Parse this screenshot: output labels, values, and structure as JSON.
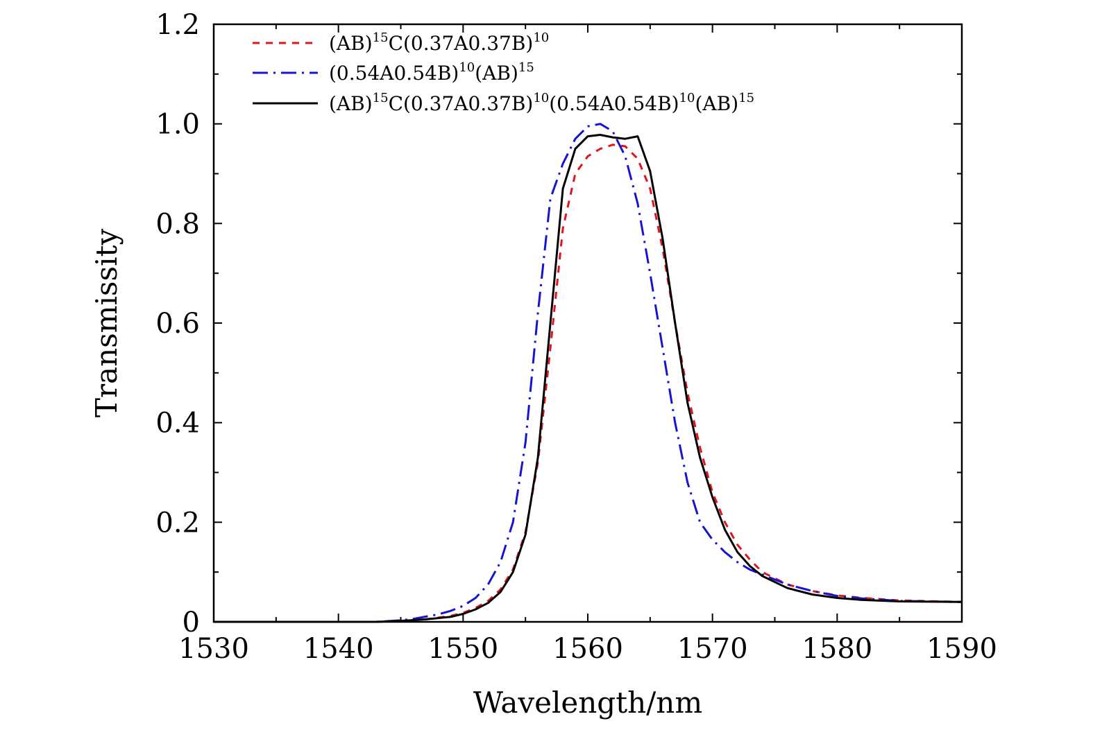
{
  "chart_data": {
    "type": "line",
    "xlabel": "Wavelength/nm",
    "ylabel": "Transmissity",
    "xlim": [
      1530,
      1590
    ],
    "ylim": [
      0,
      1.2
    ],
    "x_ticks": [
      1530,
      1540,
      1550,
      1560,
      1570,
      1580,
      1590
    ],
    "x_tick_labels": [
      "1530",
      "1540",
      "1550",
      "1560",
      "1570",
      "1580",
      "1590"
    ],
    "y_ticks": [
      0,
      0.2,
      0.4,
      0.6,
      0.8,
      1.0,
      1.2
    ],
    "y_tick_labels": [
      "0",
      "0.2",
      "0.4",
      "0.6",
      "0.8",
      "1.0",
      "1.2"
    ],
    "grid": false,
    "legend_position": "top-left",
    "series": [
      {
        "legend": [
          {
            "t": "(AB)"
          },
          {
            "sup": "15"
          },
          {
            "t": "C(0.37A0.37B)"
          },
          {
            "sup": "10"
          }
        ],
        "color": "#e0141e",
        "dash": "10 9",
        "x": [
          1530,
          1535,
          1540,
          1543,
          1545,
          1547,
          1549,
          1550,
          1551,
          1552,
          1553,
          1554,
          1555,
          1556,
          1557,
          1558,
          1559,
          1560,
          1561,
          1562,
          1563,
          1564,
          1565,
          1566,
          1567,
          1568,
          1569,
          1570,
          1571,
          1572,
          1573,
          1574,
          1576,
          1578,
          1580,
          1582,
          1585,
          1590
        ],
        "y": [
          0,
          0,
          0,
          0,
          0.002,
          0.005,
          0.012,
          0.018,
          0.028,
          0.042,
          0.065,
          0.105,
          0.18,
          0.32,
          0.55,
          0.79,
          0.9,
          0.935,
          0.95,
          0.958,
          0.955,
          0.93,
          0.87,
          0.75,
          0.6,
          0.46,
          0.35,
          0.26,
          0.2,
          0.155,
          0.125,
          0.1,
          0.075,
          0.062,
          0.053,
          0.048,
          0.043,
          0.04
        ]
      },
      {
        "legend": [
          {
            "t": "(0.54A0.54B)"
          },
          {
            "sup": "10"
          },
          {
            "t": "(AB)"
          },
          {
            "sup": "15"
          }
        ],
        "color": "#1414d2",
        "dash": "22 8 3 8",
        "x": [
          1530,
          1535,
          1540,
          1543,
          1545,
          1546,
          1548,
          1549,
          1550,
          1551,
          1552,
          1553,
          1554,
          1555,
          1556,
          1557,
          1558,
          1559,
          1560,
          1561,
          1562,
          1563,
          1564,
          1565,
          1566,
          1567,
          1568,
          1569,
          1570,
          1571,
          1572,
          1573,
          1574,
          1576,
          1578,
          1580,
          1582,
          1585,
          1590
        ],
        "y": [
          0,
          0,
          0,
          0,
          0.003,
          0.006,
          0.015,
          0.022,
          0.032,
          0.048,
          0.075,
          0.12,
          0.2,
          0.36,
          0.62,
          0.85,
          0.92,
          0.97,
          0.995,
          1.0,
          0.985,
          0.935,
          0.84,
          0.7,
          0.55,
          0.4,
          0.28,
          0.2,
          0.165,
          0.14,
          0.12,
          0.105,
          0.095,
          0.075,
          0.062,
          0.052,
          0.047,
          0.042,
          0.04
        ]
      },
      {
        "legend": [
          {
            "t": "(AB)"
          },
          {
            "sup": "15"
          },
          {
            "t": "C(0.37A0.37B)"
          },
          {
            "sup": "10"
          },
          {
            "t": "(0.54A0.54B)"
          },
          {
            "sup": "10"
          },
          {
            "t": "(AB)"
          },
          {
            "sup": "15"
          }
        ],
        "color": "#000000",
        "dash": "",
        "x": [
          1530,
          1535,
          1540,
          1543,
          1545,
          1547,
          1549,
          1550,
          1551,
          1552,
          1553,
          1554,
          1555,
          1556,
          1557,
          1558,
          1559,
          1560,
          1561,
          1562,
          1563,
          1564,
          1565,
          1566,
          1567,
          1568,
          1569,
          1570,
          1571,
          1572,
          1573,
          1574,
          1576,
          1578,
          1580,
          1582,
          1585,
          1590
        ],
        "y": [
          0,
          0,
          0,
          0,
          0.002,
          0.005,
          0.01,
          0.016,
          0.025,
          0.038,
          0.06,
          0.1,
          0.175,
          0.33,
          0.6,
          0.87,
          0.95,
          0.975,
          0.978,
          0.973,
          0.97,
          0.975,
          0.905,
          0.77,
          0.6,
          0.44,
          0.33,
          0.25,
          0.185,
          0.14,
          0.112,
          0.092,
          0.068,
          0.055,
          0.048,
          0.044,
          0.041,
          0.04
        ]
      }
    ]
  }
}
